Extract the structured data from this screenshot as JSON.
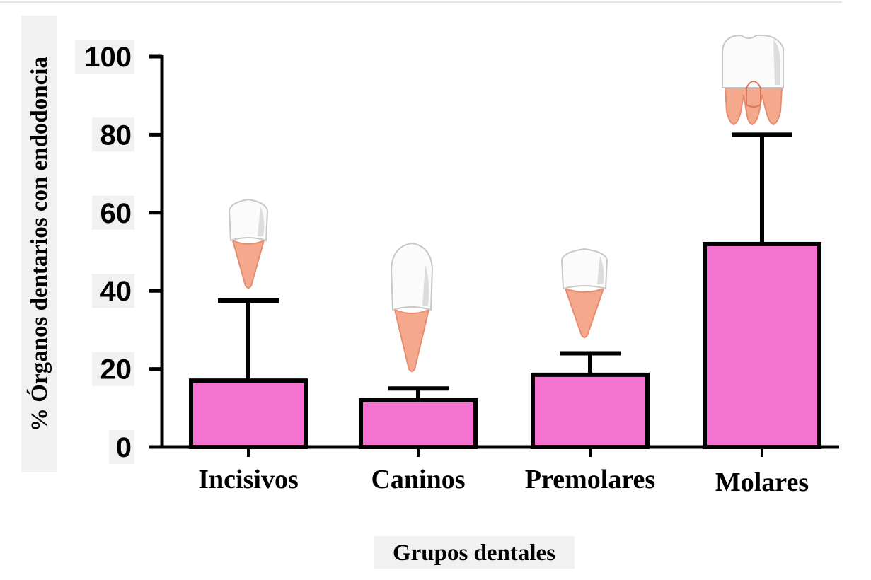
{
  "chart_data": {
    "type": "bar",
    "categories": [
      "Incisivos",
      "Caninos",
      "Premolares",
      "Molares"
    ],
    "series": [
      {
        "values": [
          17,
          12,
          18.5,
          52
        ],
        "error_upper": [
          37.5,
          15,
          24,
          80
        ]
      }
    ],
    "xlabel": "Grupos dentales",
    "ylabel": "% Órganos dentarios con endodoncia",
    "ylim": [
      0,
      100
    ],
    "yticks": [
      0,
      20,
      40,
      60,
      80,
      100
    ],
    "ytick_labels": [
      "0",
      "20",
      "40",
      "60",
      "80",
      "100"
    ],
    "grid": false,
    "bar_color": "#f472d0",
    "edge_color": "#000000",
    "tooth_icons": [
      "incisor-tooth",
      "canine-tooth",
      "premolar-tooth",
      "molar-tooth"
    ]
  }
}
